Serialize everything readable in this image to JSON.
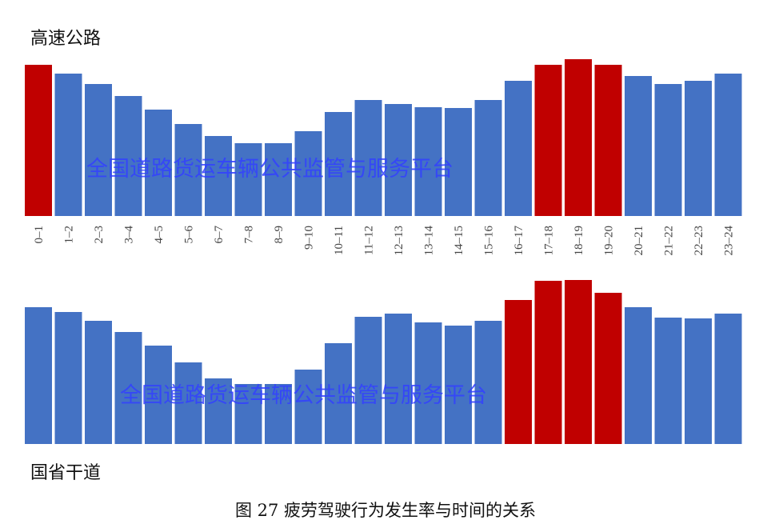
{
  "chart_data": [
    {
      "type": "bar",
      "title": "高速公路",
      "categories": [
        "0-1",
        "1-2",
        "2-3",
        "3-4",
        "4-5",
        "5-6",
        "6-7",
        "7-8",
        "8-9",
        "9-10",
        "10-11",
        "11-12",
        "12-13",
        "13-14",
        "14-15",
        "15-16",
        "16-17",
        "17-18",
        "18-19",
        "19-20",
        "20-21",
        "21-22",
        "22-23",
        "23-24"
      ],
      "values": [
        189,
        178,
        165,
        150,
        133,
        115,
        100,
        91,
        91,
        106,
        130,
        145,
        140,
        136,
        135,
        145,
        169,
        189,
        196,
        189,
        175,
        165,
        169,
        178
      ],
      "highlighted": [
        true,
        false,
        false,
        false,
        false,
        false,
        false,
        false,
        false,
        false,
        false,
        false,
        false,
        false,
        false,
        false,
        false,
        true,
        true,
        true,
        false,
        false,
        false,
        false
      ],
      "ylim": [
        0,
        200
      ],
      "grid": false,
      "watermark": "全国道路货运车辆公共监管与服务平台"
    },
    {
      "type": "bar",
      "title": "国省干道",
      "categories": [
        "0-1",
        "1-2",
        "2-3",
        "3-4",
        "4-5",
        "5-6",
        "6-7",
        "7-8",
        "8-9",
        "9-10",
        "10-11",
        "11-12",
        "12-13",
        "13-14",
        "14-15",
        "15-16",
        "16-17",
        "17-18",
        "18-19",
        "19-20",
        "20-21",
        "21-22",
        "22-23",
        "23-24"
      ],
      "values": [
        171,
        165,
        154,
        140,
        123,
        102,
        82,
        75,
        75,
        93,
        126,
        159,
        163,
        152,
        148,
        154,
        180,
        204,
        205,
        189,
        171,
        158,
        157,
        163
      ],
      "highlighted": [
        false,
        false,
        false,
        false,
        false,
        false,
        false,
        false,
        false,
        false,
        false,
        false,
        false,
        false,
        false,
        false,
        true,
        true,
        true,
        true,
        false,
        false,
        false,
        false
      ],
      "ylim": [
        0,
        210
      ],
      "grid": false,
      "watermark": "全国道路货运车辆公共监管与服务平台"
    }
  ],
  "caption": "图 27 疲劳驾驶行为发生率与时间的关系",
  "colors": {
    "normal": "#4472c4",
    "highlight": "#c00000",
    "watermark": "#3340ff"
  }
}
